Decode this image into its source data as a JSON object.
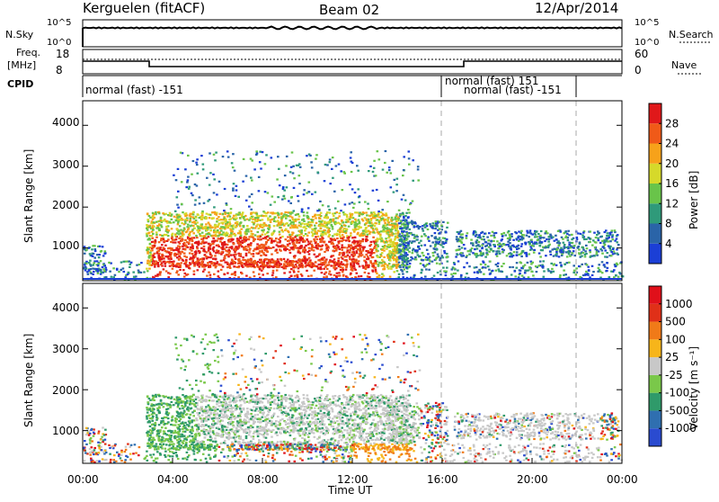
{
  "header": {
    "station": "Kerguelen (fitACF)",
    "beam": "Beam 02",
    "date": "12/Apr/2014"
  },
  "top_panels": {
    "nsky_label": "N.Sky",
    "nsky_ticks": [
      "10^5",
      "10^0"
    ],
    "nsky_right_ticks": [
      "10^5",
      "10^0"
    ],
    "nsearch_label": "N.Search",
    "freq_label_1": "Freq.",
    "freq_label_2": "[MHz]",
    "freq_ticks": [
      "18",
      "8"
    ],
    "nave_ticks": [
      "60",
      "0"
    ],
    "nave_label": "Nave",
    "cpid_label": "CPID",
    "cpid_entries": [
      {
        "text": "normal (fast) -151"
      },
      {
        "text": "normal (fast) 151"
      },
      {
        "text": "normal (fast) -151"
      }
    ]
  },
  "chart_data": [
    {
      "type": "heatmap",
      "title": "Power",
      "ylabel": "Slant Range [km]",
      "y_ticks": [
        "1000",
        "2000",
        "3000",
        "4000"
      ],
      "ylim": [
        200,
        4600
      ],
      "xlim": [
        0,
        24
      ],
      "colorbar_label": "Power [dB]",
      "colorbar_ticks": [
        "4",
        "8",
        "12",
        "16",
        "20",
        "24",
        "28"
      ],
      "colorbar_colors": [
        "#1b3fd6",
        "#2a64a8",
        "#2f9a7a",
        "#69c44a",
        "#d6d92a",
        "#f7a21a",
        "#f05a18",
        "#e0181a"
      ],
      "vertical_dashed_lines_ut": [
        16,
        22
      ]
    },
    {
      "type": "heatmap",
      "title": "Velocity",
      "ylabel": "Slant Range [km]",
      "y_ticks": [
        "1000",
        "2000",
        "3000",
        "4000"
      ],
      "ylim": [
        200,
        4600
      ],
      "xlim": [
        0,
        24
      ],
      "colorbar_label": "Velocity [m s⁻¹]",
      "colorbar_ticks": [
        "1000",
        "500",
        "100",
        "25",
        "-25",
        "-100",
        "-500",
        "-1000"
      ],
      "colorbar_colors": [
        "#2a4bd0",
        "#2f6fb0",
        "#2f9a6a",
        "#7ac84a",
        "#c8c8c8",
        "#f7b51a",
        "#f07a18",
        "#e03018",
        "#e0101a"
      ],
      "vertical_dashed_lines_ut": [
        16,
        22
      ]
    }
  ],
  "x_axis": {
    "ticks": [
      "00:00",
      "04:00",
      "08:00",
      "12:00",
      "16:00",
      "20:00",
      "00:00"
    ],
    "label": "Time UT"
  }
}
